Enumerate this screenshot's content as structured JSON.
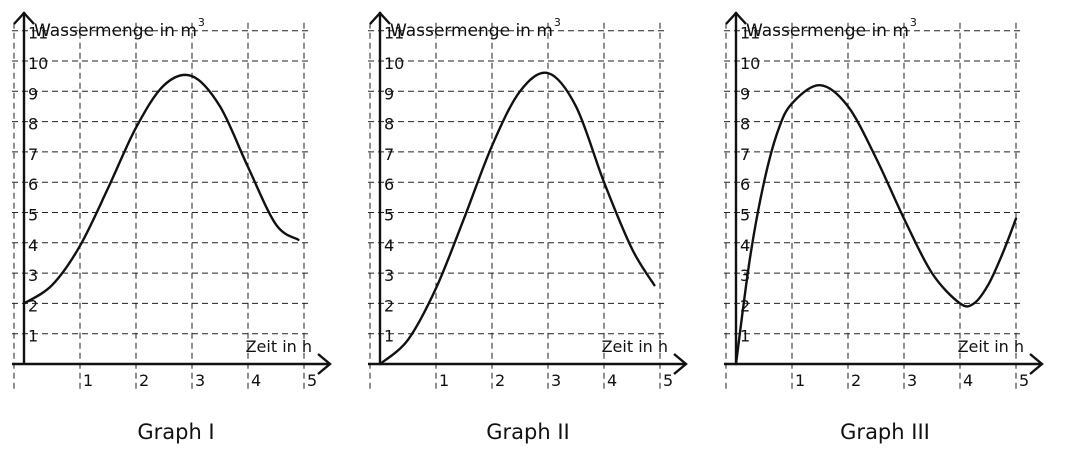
{
  "chart_data": [
    {
      "type": "line",
      "caption": "Graph I",
      "ylabel": "Wassermenge in m",
      "ylabel_sup": "3",
      "xlabel": "Zeit in h",
      "xlim": [
        0,
        5
      ],
      "ylim": [
        0,
        11
      ],
      "x_ticks": [
        1,
        2,
        3,
        4,
        5
      ],
      "y_ticks": [
        1,
        2,
        3,
        4,
        5,
        6,
        7,
        8,
        9,
        10,
        11
      ],
      "grid": true,
      "series": [
        {
          "x": [
            0,
            0.5,
            1,
            1.5,
            2,
            2.5,
            3,
            3.5,
            4,
            4.5,
            4.9
          ],
          "y": [
            2,
            2.6,
            3.9,
            5.8,
            7.8,
            9.2,
            9.5,
            8.5,
            6.5,
            4.6,
            4.1
          ]
        }
      ]
    },
    {
      "type": "line",
      "caption": "Graph II",
      "ylabel": "Wassermenge in m",
      "ylabel_sup": "3",
      "xlabel": "Zeit in h",
      "xlim": [
        0,
        5
      ],
      "ylim": [
        0,
        11
      ],
      "x_ticks": [
        1,
        2,
        3,
        4,
        5
      ],
      "y_ticks": [
        1,
        2,
        3,
        4,
        5,
        6,
        7,
        8,
        9,
        10,
        11
      ],
      "grid": true,
      "series": [
        {
          "x": [
            0,
            0.5,
            1,
            1.5,
            2,
            2.5,
            3,
            3.5,
            4,
            4.5,
            4.9
          ],
          "y": [
            0,
            0.8,
            2.5,
            4.8,
            7.2,
            9,
            9.6,
            8.5,
            6,
            3.8,
            2.6
          ]
        }
      ]
    },
    {
      "type": "line",
      "caption": "Graph III",
      "ylabel": "Wassermenge in m",
      "ylabel_sup": "3",
      "xlabel": "Zeit in h",
      "xlim": [
        0,
        5
      ],
      "ylim": [
        0,
        11
      ],
      "x_ticks": [
        1,
        2,
        3,
        4,
        5
      ],
      "y_ticks": [
        1,
        2,
        3,
        4,
        5,
        6,
        7,
        8,
        9,
        10,
        11
      ],
      "grid": true,
      "series": [
        {
          "x": [
            0,
            0.25,
            0.5,
            0.75,
            1,
            1.5,
            2,
            2.5,
            3,
            3.5,
            4,
            4.25,
            4.5,
            4.75,
            5
          ],
          "y": [
            0,
            3.5,
            6,
            7.7,
            8.6,
            9.2,
            8.5,
            6.8,
            4.8,
            3,
            2,
            2,
            2.6,
            3.6,
            4.8
          ]
        }
      ]
    }
  ]
}
